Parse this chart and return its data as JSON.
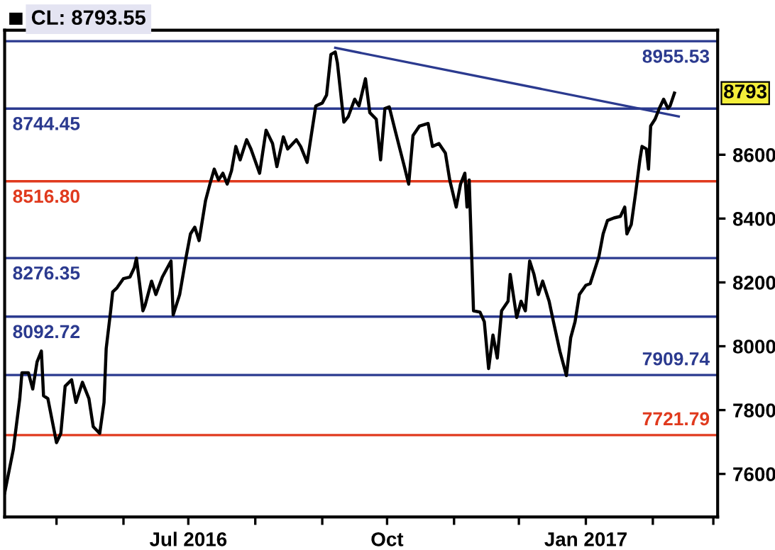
{
  "chart_data": {
    "type": "line",
    "x": [
      "2016-04-07",
      "2016-04-11",
      "2016-04-14",
      "2016-04-15",
      "2016-04-18",
      "2016-04-20",
      "2016-04-22",
      "2016-04-24",
      "2016-04-25",
      "2016-04-27",
      "2016-05-01",
      "2016-05-03",
      "2016-05-05",
      "2016-05-08",
      "2016-05-10",
      "2016-05-13",
      "2016-05-16",
      "2016-05-18",
      "2016-05-21",
      "2016-05-23",
      "2016-05-24",
      "2016-05-26",
      "2016-05-27",
      "2016-05-29",
      "2016-06-01",
      "2016-06-04",
      "2016-06-06",
      "2016-06-07",
      "2016-06-10",
      "2016-06-11",
      "2016-06-14",
      "2016-06-16",
      "2016-06-19",
      "2016-06-23",
      "2016-06-24",
      "2016-06-27",
      "2016-06-30",
      "2016-07-02",
      "2016-07-04",
      "2016-07-06",
      "2016-07-09",
      "2016-07-11",
      "2016-07-13",
      "2016-07-15",
      "2016-07-17",
      "2016-07-19",
      "2016-07-21",
      "2016-07-23",
      "2016-07-25",
      "2016-07-28",
      "2016-07-30",
      "2016-08-03",
      "2016-08-06",
      "2016-08-09",
      "2016-08-11",
      "2016-08-14",
      "2016-08-16",
      "2016-08-20",
      "2016-08-22",
      "2016-08-25",
      "2016-08-29",
      "2016-09-01",
      "2016-09-03",
      "2016-09-05",
      "2016-09-07",
      "2016-09-08",
      "2016-09-11",
      "2016-09-13",
      "2016-09-16",
      "2016-09-18",
      "2016-09-21",
      "2016-09-23",
      "2016-09-26",
      "2016-09-28",
      "2016-09-30",
      "2016-10-02",
      "2016-10-05",
      "2016-10-09",
      "2016-10-11",
      "2016-10-13",
      "2016-10-16",
      "2016-10-20",
      "2016-10-22",
      "2016-10-25",
      "2016-10-28",
      "2016-10-30",
      "2016-11-02",
      "2016-11-04",
      "2016-11-06",
      "2016-11-07",
      "2016-11-08",
      "2016-11-10",
      "2016-11-13",
      "2016-11-15",
      "2016-11-17",
      "2016-11-19",
      "2016-11-21",
      "2016-11-23",
      "2016-11-26",
      "2016-11-27",
      "2016-11-30",
      "2016-12-02",
      "2016-12-04",
      "2016-12-06",
      "2016-12-08",
      "2016-12-10",
      "2016-12-12",
      "2016-12-15",
      "2016-12-17",
      "2016-12-20",
      "2016-12-23",
      "2016-12-25",
      "2016-12-27",
      "2016-12-29",
      "2017-01-01",
      "2017-01-03",
      "2017-01-05",
      "2017-01-07",
      "2017-01-09",
      "2017-01-11",
      "2017-01-14",
      "2017-01-17",
      "2017-01-19",
      "2017-01-20",
      "2017-01-22",
      "2017-01-24",
      "2017-01-26",
      "2017-01-27",
      "2017-01-29",
      "2017-01-30",
      "2017-01-31",
      "2017-02-02",
      "2017-02-04",
      "2017-02-06",
      "2017-02-08",
      "2017-02-09",
      "2017-02-11"
    ],
    "series": [
      {
        "color": "#000000",
        "values": [
          7540,
          7676,
          7836,
          7917,
          7917,
          7866,
          7951,
          7985,
          7845,
          7836,
          7698,
          7727,
          7875,
          7895,
          7824,
          7887,
          7836,
          7748,
          7727,
          7824,
          7993,
          8107,
          8170,
          8183,
          8212,
          8217,
          8246,
          8276,
          8111,
          8128,
          8204,
          8162,
          8217,
          8267,
          8098,
          8162,
          8280,
          8352,
          8373,
          8331,
          8457,
          8508,
          8555,
          8521,
          8542,
          8508,
          8550,
          8626,
          8584,
          8647,
          8618,
          8542,
          8677,
          8635,
          8563,
          8656,
          8618,
          8647,
          8626,
          8576,
          8753,
          8762,
          8787,
          8914,
          8922,
          8888,
          8702,
          8719,
          8774,
          8753,
          8838,
          8732,
          8711,
          8584,
          8745,
          8750,
          8669,
          8563,
          8508,
          8660,
          8690,
          8698,
          8626,
          8635,
          8605,
          8521,
          8436,
          8508,
          8542,
          8436,
          8521,
          8111,
          8107,
          8077,
          7930,
          8035,
          7963,
          8111,
          8141,
          8225,
          8090,
          8141,
          8111,
          8267,
          8225,
          8162,
          8204,
          8141,
          8077,
          7984,
          7908,
          8027,
          8077,
          8162,
          8191,
          8196,
          8238,
          8280,
          8352,
          8394,
          8402,
          8407,
          8436,
          8352,
          8381,
          8478,
          8584,
          8626,
          8618,
          8555,
          8690,
          8711,
          8745,
          8774,
          8745,
          8753,
          8793
        ]
      },
      {
        "type": "line",
        "color": "#2b3a8f",
        "x": [
          "2016-09-07",
          "2017-02-13"
        ],
        "values": [
          8935,
          8720
        ]
      }
    ],
    "xlim": [
      "2016-04-07",
      "2017-03-03"
    ],
    "xticks": [
      {
        "value": "2016-05-01",
        "label": null
      },
      {
        "value": "2016-06-01",
        "label": null
      },
      {
        "value": "2016-07-01",
        "label": "Jul 2016"
      },
      {
        "value": "2016-08-01",
        "label": null
      },
      {
        "value": "2016-09-01",
        "label": null
      },
      {
        "value": "2016-10-01",
        "label": "Oct"
      },
      {
        "value": "2016-11-01",
        "label": null
      },
      {
        "value": "2016-12-01",
        "label": null
      },
      {
        "value": "2017-01-01",
        "label": "Jan 2017"
      },
      {
        "value": "2017-02-01",
        "label": null
      },
      {
        "value": "2017-03-01",
        "label": null
      }
    ],
    "ylim": [
      7465,
      8990
    ],
    "yticks": [
      7600,
      7800,
      8000,
      8200,
      8400,
      8600
    ],
    "ref_lines": [
      {
        "axis": "y",
        "value": 8955.53,
        "label": "8955.53",
        "color": "#2b3a8f"
      },
      {
        "axis": "y",
        "value": 8744.45,
        "label": "8744.45",
        "color": "#2b3a8f"
      },
      {
        "axis": "y",
        "value": 8516.8,
        "label": "8516.80",
        "color": "#e03a1e"
      },
      {
        "axis": "y",
        "value": 8276.35,
        "label": "8276.35",
        "color": "#2b3a8f"
      },
      {
        "axis": "y",
        "value": 8092.72,
        "label": "8092.72",
        "color": "#2b3a8f"
      },
      {
        "axis": "y",
        "value": 7909.74,
        "label": "7909.74",
        "color": "#2b3a8f"
      },
      {
        "axis": "y",
        "value": 7721.79,
        "label": "7721.79",
        "color": "#e03a1e"
      }
    ],
    "annotations": [
      "CL: 8793.55",
      {
        "text": "8793",
        "x": "2017-02-11",
        "y": 8793
      }
    ],
    "grid": false,
    "legend": false,
    "marker": "none",
    "line_style": "solid"
  }
}
